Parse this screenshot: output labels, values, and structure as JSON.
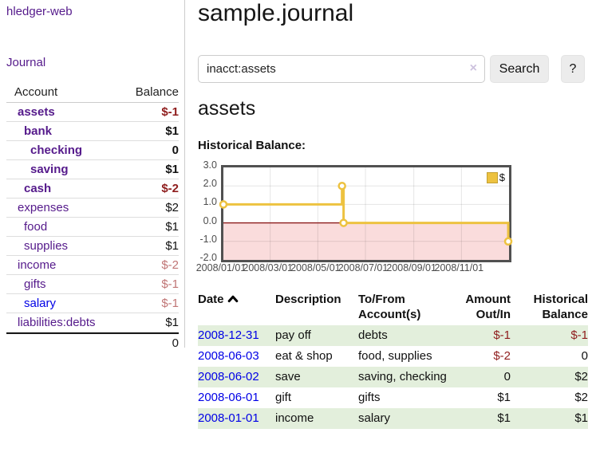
{
  "colors": {
    "accent_purple": "#551a8b",
    "link_blue": "#0000e6",
    "neg_strong": "#8f1d1d",
    "neg_muted": "#c07575",
    "row_green": "#e3efdc",
    "series_yellow": "#edc240",
    "button_gray": "#ececec"
  },
  "app": {
    "brand": "hledger-web",
    "nav_journal": "Journal"
  },
  "sidebar": {
    "col_account": "Account",
    "col_balance": "Balance",
    "total": "0",
    "accounts": [
      {
        "name": "assets",
        "indent": 1,
        "bold": true,
        "link": "visited",
        "balance": "$-1",
        "neg": "strong"
      },
      {
        "name": "bank",
        "indent": 2,
        "bold": true,
        "link": "visited",
        "balance": "$1",
        "neg": "none"
      },
      {
        "name": "checking",
        "indent": 3,
        "bold": true,
        "link": "visited",
        "balance": "0",
        "neg": "none"
      },
      {
        "name": "saving",
        "indent": 3,
        "bold": true,
        "link": "visited",
        "balance": "$1",
        "neg": "none"
      },
      {
        "name": "cash",
        "indent": 2,
        "bold": true,
        "link": "visited",
        "balance": "$-2",
        "neg": "strong"
      },
      {
        "name": "expenses",
        "indent": 1,
        "bold": false,
        "link": "visited",
        "balance": "$2",
        "neg": "none"
      },
      {
        "name": "food",
        "indent": 2,
        "bold": false,
        "link": "visited",
        "balance": "$1",
        "neg": "none"
      },
      {
        "name": "supplies",
        "indent": 2,
        "bold": false,
        "link": "visited",
        "balance": "$1",
        "neg": "none"
      },
      {
        "name": "income",
        "indent": 1,
        "bold": false,
        "link": "visited",
        "balance": "$-2",
        "neg": "muted"
      },
      {
        "name": "gifts",
        "indent": 2,
        "bold": false,
        "link": "visited",
        "balance": "$-1",
        "neg": "muted"
      },
      {
        "name": "salary",
        "indent": 2,
        "bold": false,
        "link": "unvisited",
        "balance": "$-1",
        "neg": "muted"
      },
      {
        "name": "liabilities:debts",
        "indent": 1,
        "bold": false,
        "link": "visited",
        "balance": "$1",
        "neg": "none"
      }
    ]
  },
  "header": {
    "title": "sample.journal"
  },
  "search": {
    "value": "inacct:assets",
    "clear_icon": "×",
    "search_label": "Search",
    "help_label": "?"
  },
  "account_page": {
    "heading": "assets",
    "chart_title": "Historical Balance:"
  },
  "chart_data": {
    "type": "line",
    "step": true,
    "title": "Historical Balance",
    "legend": "$",
    "legend_position": "top-right",
    "grid": true,
    "ylim": [
      -2,
      3
    ],
    "yticks": [
      "3.0",
      "2.0",
      "1.0",
      "0.0",
      "-1.0",
      "-2.0"
    ],
    "xticks": [
      "2008/01/01",
      "2008/03/01",
      "2008/05/01",
      "2008/07/01",
      "2008/09/01",
      "2008/11/01"
    ],
    "series": [
      {
        "name": "$",
        "color": "#edc240",
        "points": [
          [
            "2008-01-01",
            1
          ],
          [
            "2008-06-01",
            2
          ],
          [
            "2008-06-03",
            0
          ],
          [
            "2008-12-31",
            -1
          ]
        ]
      }
    ],
    "negative_region_fill": "#fadcdc",
    "zero_line_color": "#8b1a1a"
  },
  "register": {
    "headers": {
      "date": "Date",
      "description": "Description",
      "accounts": "To/From Account(s)",
      "amount": "Amount Out/In",
      "balance": "Historical Balance"
    },
    "rows": [
      {
        "date": "2008-12-31",
        "description": "pay off",
        "accounts": "debts",
        "amount": "$-1",
        "amount_neg": true,
        "balance": "$-1",
        "balance_neg": true,
        "shade": true
      },
      {
        "date": "2008-06-03",
        "description": "eat & shop",
        "accounts": "food, supplies",
        "amount": "$-2",
        "amount_neg": true,
        "balance": "0",
        "balance_neg": false,
        "shade": false
      },
      {
        "date": "2008-06-02",
        "description": "save",
        "accounts": "saving, checking",
        "amount": "0",
        "amount_neg": false,
        "balance": "$2",
        "balance_neg": false,
        "shade": true
      },
      {
        "date": "2008-06-01",
        "description": "gift",
        "accounts": "gifts",
        "amount": "$1",
        "amount_neg": false,
        "balance": "$2",
        "balance_neg": false,
        "shade": false
      },
      {
        "date": "2008-01-01",
        "description": "income",
        "accounts": "salary",
        "amount": "$1",
        "amount_neg": false,
        "balance": "$1",
        "balance_neg": false,
        "shade": true
      }
    ]
  }
}
